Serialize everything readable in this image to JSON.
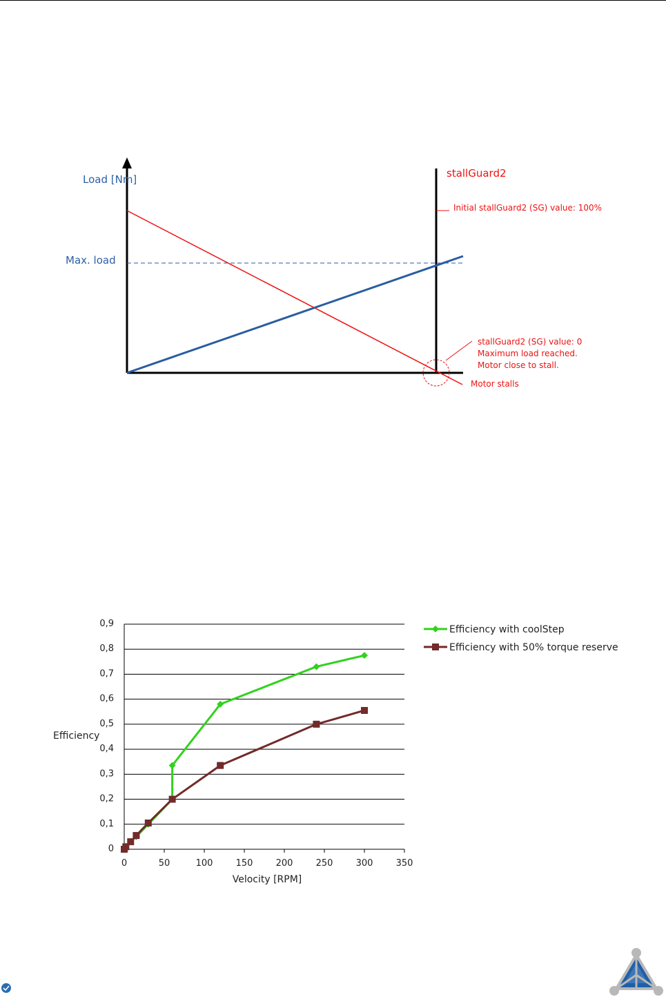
{
  "diagram": {
    "load_label": "Load [Nm]",
    "max_load_label": "Max. load",
    "stallguard_title": "stallGuard2",
    "initial_sg_label": "Initial stallGuard2 (SG) value: 100%",
    "sg_zero_lines": [
      "stallGuard2 (SG) value: 0",
      "Maximum load reached.",
      "Motor close to stall."
    ],
    "motor_stalls_label": "Motor stalls",
    "colors": {
      "blue_text": "#2b5fa6",
      "red": "#ee1111",
      "blue_line": "#2a5da0"
    }
  },
  "chart_data": {
    "type": "line",
    "xlabel": "Velocity [RPM]",
    "ylabel": "Efficiency",
    "xlim": [
      0,
      350
    ],
    "ylim": [
      0,
      0.9
    ],
    "xticks": [
      "0",
      "50",
      "100",
      "150",
      "200",
      "250",
      "300",
      "350"
    ],
    "yticks": [
      "0",
      "0,1",
      "0,2",
      "0,3",
      "0,4",
      "0,5",
      "0,6",
      "0,7",
      "0,8",
      "0,9"
    ],
    "grid": true,
    "legend": "right",
    "series": [
      {
        "name": "Efficiency with coolStep",
        "color": "#33d11f",
        "marker": "diamond",
        "x": [
          0,
          2,
          8,
          15,
          30,
          60,
          60,
          120,
          240,
          300
        ],
        "y": [
          0,
          0.01,
          0.03,
          0.05,
          0.1,
          0.2,
          0.335,
          0.58,
          0.73,
          0.775
        ]
      },
      {
        "name": "Efficiency with 50% torque reserve",
        "color": "#722a2a",
        "marker": "square",
        "x": [
          0,
          2,
          8,
          15,
          30,
          60,
          120,
          240,
          300
        ],
        "y": [
          0,
          0.01,
          0.03,
          0.055,
          0.105,
          0.2,
          0.335,
          0.5,
          0.555
        ]
      }
    ]
  },
  "logo": {
    "name": "triangle-logo"
  }
}
